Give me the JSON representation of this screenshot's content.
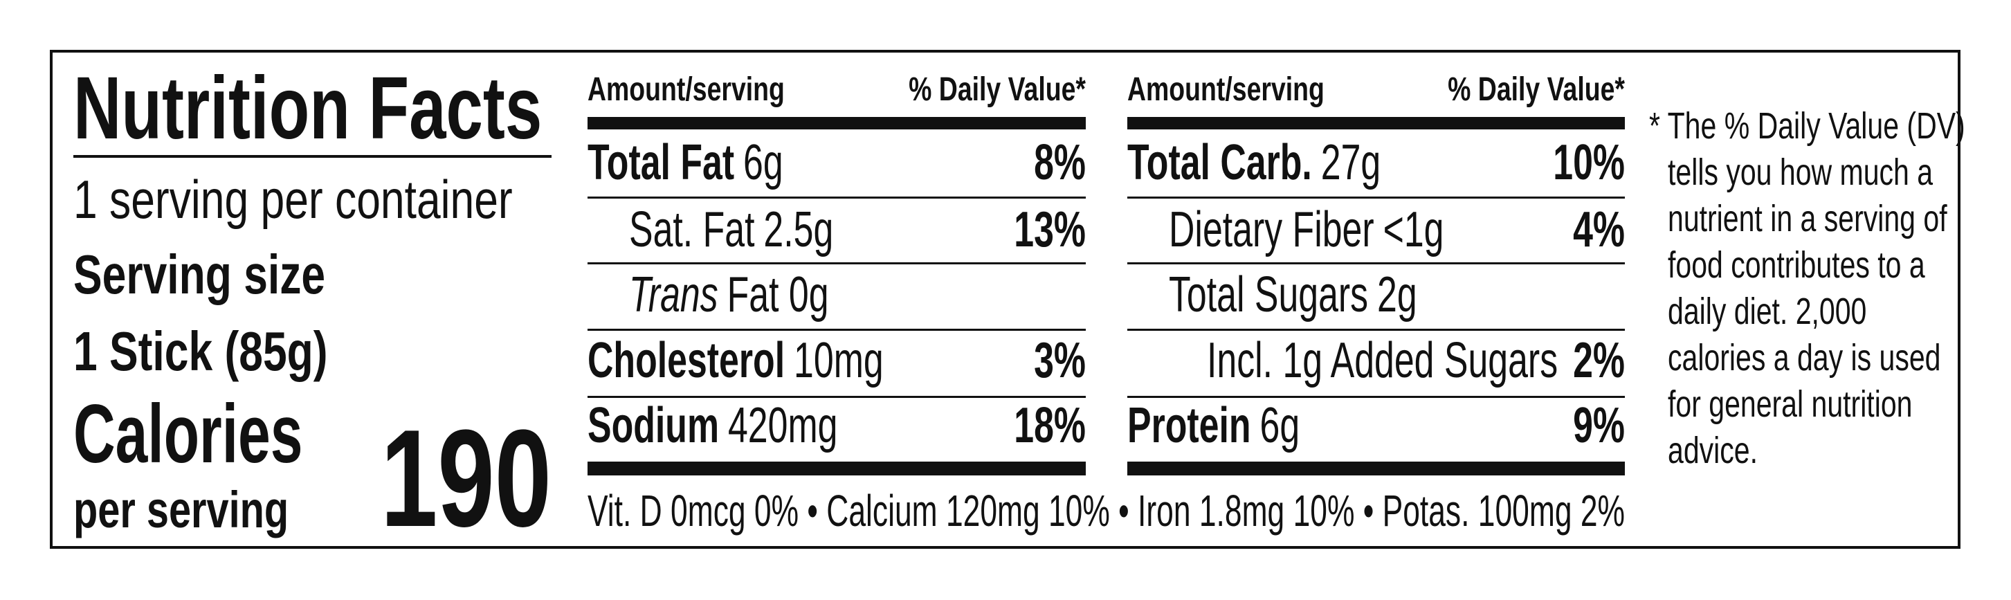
{
  "header": {
    "title": "Nutrition Facts",
    "servings": "1 serving per container",
    "serving_size_label": "Serving size",
    "serving_size": "1 Stick (85g)",
    "calories_label": "Calories",
    "calories_sub": "per serving",
    "calories": "190"
  },
  "columns": [
    {
      "amount_header": "Amount/serving",
      "dv_header": "% Daily Value*",
      "rows": [
        {
          "name": "Total Fat",
          "amount": "6g",
          "dv": "8%",
          "level": 0
        },
        {
          "name": "Sat. Fat",
          "amount": "2.5g",
          "dv": "13%",
          "level": 1
        },
        {
          "name": "Trans",
          "amount": "Fat 0g",
          "level": 1,
          "italic": true
        },
        {
          "name": "Cholesterol",
          "amount": "10mg",
          "dv": "3%",
          "level": 0
        },
        {
          "name": "Sodium",
          "amount": "420mg",
          "dv": "18%",
          "level": 0
        }
      ]
    },
    {
      "amount_header": "Amount/serving",
      "dv_header": "% Daily Value*",
      "rows": [
        {
          "name": "Total Carb.",
          "amount": "27g",
          "dv": "10%",
          "level": 0
        },
        {
          "name": "Dietary Fiber",
          "amount": "<1g",
          "dv": "4%",
          "level": 1
        },
        {
          "name": "Total Sugars",
          "amount": "2g",
          "level": 1
        },
        {
          "name": "Incl. 1g Added Sugars",
          "dv": "2%",
          "level": 2
        },
        {
          "name": "Protein",
          "amount": "6g",
          "dv": "9%",
          "level": 0
        }
      ]
    }
  ],
  "footer": "Vit. D 0mcg 0% • Calcium 120mg 10% • Iron 1.8mg 10% • Potas. 100mg 2%",
  "footnote": [
    "* The % Daily Value (DV)",
    "tells you how much a",
    "nutrient in a serving of",
    "food contributes to a",
    "daily diet. 2,000",
    "calories a day is used",
    "for general nutrition",
    "advice."
  ]
}
